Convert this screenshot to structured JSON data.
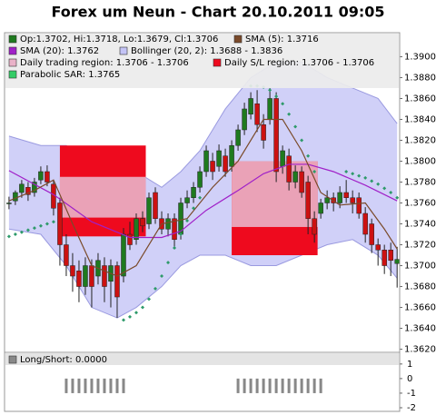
{
  "chart_data": {
    "type": "candlestick",
    "title": "Forex um Neun - Chart 20.10.2011 09:05",
    "xlim": [
      -0.7,
      61.4
    ],
    "ylim": [
      1.3617,
      1.3923
    ],
    "yticks": [
      {
        "value": 1.362,
        "label": "1.3620"
      },
      {
        "value": 1.364,
        "label": "1.3640"
      },
      {
        "value": 1.366,
        "label": "1.3660"
      },
      {
        "value": 1.368,
        "label": "1.3680"
      },
      {
        "value": 1.37,
        "label": "1.3700"
      },
      {
        "value": 1.372,
        "label": "1.3720"
      },
      {
        "value": 1.374,
        "label": "1.3740"
      },
      {
        "value": 1.376,
        "label": "1.3760"
      },
      {
        "value": 1.378,
        "label": "1.3780"
      },
      {
        "value": 1.38,
        "label": "1.3800"
      },
      {
        "value": 1.382,
        "label": "1.3820"
      },
      {
        "value": 1.384,
        "label": "1.3840"
      },
      {
        "value": 1.386,
        "label": "1.3860"
      },
      {
        "value": 1.388,
        "label": "1.3880"
      },
      {
        "value": 1.39,
        "label": "1.3900"
      }
    ],
    "up_color": "#1f7a1f",
    "down_color": "#cc1111",
    "candles": {
      "open": [
        1.376,
        1.3762,
        1.377,
        1.3775,
        1.377,
        1.3782,
        1.379,
        1.3778,
        1.376,
        1.372,
        1.37,
        1.3695,
        1.368,
        1.37,
        1.369,
        1.37,
        1.3685,
        1.37,
        1.369,
        1.373,
        1.3725,
        1.3745,
        1.374,
        1.377,
        1.3745,
        1.3735,
        1.3745,
        1.373,
        1.376,
        1.3765,
        1.3775,
        1.379,
        1.38,
        1.3795,
        1.3805,
        1.3795,
        1.3815,
        1.383,
        1.3845,
        1.3855,
        1.3835,
        1.384,
        1.386,
        1.3795,
        1.3805,
        1.378,
        1.379,
        1.378,
        1.3745,
        1.375,
        1.376,
        1.3765,
        1.376,
        1.377,
        1.3765,
        1.3765,
        1.375,
        1.374,
        1.372,
        1.3715,
        1.3715,
        1.3702
      ],
      "high": [
        1.3766,
        1.3772,
        1.3782,
        1.378,
        1.3784,
        1.3795,
        1.3796,
        1.3782,
        1.3765,
        1.373,
        1.3712,
        1.3705,
        1.3708,
        1.3706,
        1.3712,
        1.3708,
        1.3706,
        1.3704,
        1.3736,
        1.3742,
        1.375,
        1.3752,
        1.377,
        1.3775,
        1.3752,
        1.375,
        1.375,
        1.3765,
        1.3772,
        1.378,
        1.3795,
        1.3815,
        1.3808,
        1.3816,
        1.3812,
        1.382,
        1.3835,
        1.3856,
        1.3866,
        1.3868,
        1.3845,
        1.387,
        1.3866,
        1.3815,
        1.3812,
        1.3796,
        1.3795,
        1.3786,
        1.3752,
        1.3764,
        1.3772,
        1.377,
        1.3776,
        1.3782,
        1.3772,
        1.377,
        1.3756,
        1.3745,
        1.3726,
        1.372,
        1.3722,
        1.3718
      ],
      "low": [
        1.3754,
        1.3758,
        1.3765,
        1.3762,
        1.3766,
        1.3778,
        1.3776,
        1.3748,
        1.37,
        1.369,
        1.3675,
        1.3665,
        1.3672,
        1.366,
        1.3682,
        1.3665,
        1.366,
        1.365,
        1.3684,
        1.3715,
        1.372,
        1.3732,
        1.3735,
        1.374,
        1.373,
        1.3728,
        1.3718,
        1.3725,
        1.3755,
        1.376,
        1.377,
        1.3785,
        1.3782,
        1.379,
        1.3785,
        1.379,
        1.381,
        1.3825,
        1.384,
        1.3828,
        1.3812,
        1.3835,
        1.378,
        1.3788,
        1.3772,
        1.3774,
        1.3765,
        1.373,
        1.3722,
        1.3745,
        1.3754,
        1.3752,
        1.3755,
        1.376,
        1.375,
        1.3745,
        1.3722,
        1.3712,
        1.37,
        1.3692,
        1.369,
        1.3679
      ],
      "close": [
        1.376,
        1.377,
        1.3778,
        1.3768,
        1.378,
        1.379,
        1.378,
        1.3755,
        1.372,
        1.37,
        1.369,
        1.368,
        1.37,
        1.368,
        1.3705,
        1.368,
        1.37,
        1.367,
        1.373,
        1.372,
        1.3745,
        1.3738,
        1.3765,
        1.3745,
        1.3735,
        1.3745,
        1.3725,
        1.376,
        1.3765,
        1.3775,
        1.379,
        1.381,
        1.379,
        1.381,
        1.379,
        1.3815,
        1.383,
        1.385,
        1.386,
        1.3835,
        1.382,
        1.386,
        1.379,
        1.381,
        1.378,
        1.379,
        1.377,
        1.3745,
        1.373,
        1.376,
        1.3765,
        1.376,
        1.377,
        1.3765,
        1.376,
        1.375,
        1.373,
        1.372,
        1.3715,
        1.37,
        1.3705,
        1.3706
      ]
    },
    "bollinger": {
      "color": "#c4c4f6",
      "line_color": "#9a9ae0",
      "x": [
        0,
        5,
        9,
        13,
        17,
        20,
        24,
        27,
        30,
        34,
        38,
        42,
        46,
        50,
        54,
        58,
        61
      ],
      "upper": [
        1.3824,
        1.3815,
        1.3815,
        1.38,
        1.379,
        1.379,
        1.3775,
        1.379,
        1.381,
        1.385,
        1.388,
        1.3895,
        1.3895,
        1.388,
        1.387,
        1.386,
        1.3836
      ],
      "lower": [
        1.3735,
        1.373,
        1.37,
        1.366,
        1.365,
        1.366,
        1.368,
        1.37,
        1.371,
        1.371,
        1.37,
        1.37,
        1.371,
        1.372,
        1.3725,
        1.371,
        1.3688
      ]
    },
    "regions": [
      {
        "x": [
          8,
          21.5
        ],
        "trade": [
          1.3746,
          1.3785
        ],
        "sl": [
          1.3728,
          1.3815
        ]
      },
      {
        "x": [
          35,
          48.5
        ],
        "trade": [
          1.3737,
          1.38
        ],
        "sl": [
          1.371,
          1.38
        ]
      }
    ],
    "trade_color": "#e9b2c8",
    "sl_color": "#ee0a1e",
    "sma5": {
      "color": "#7a4a2a",
      "x": [
        0,
        4,
        7,
        10,
        13,
        17,
        20,
        24,
        28,
        32,
        36,
        40,
        43,
        46,
        49,
        52,
        56,
        59,
        61
      ],
      "values": [
        1.3762,
        1.3772,
        1.3782,
        1.374,
        1.37,
        1.369,
        1.37,
        1.374,
        1.3745,
        1.3775,
        1.38,
        1.384,
        1.384,
        1.381,
        1.377,
        1.3758,
        1.376,
        1.3735,
        1.3716
      ]
    },
    "sma20": {
      "color": "#a020c8",
      "x": [
        0,
        7,
        13,
        19,
        24,
        27,
        31,
        36,
        40,
        44,
        47,
        51,
        56,
        61
      ],
      "values": [
        1.3791,
        1.3768,
        1.3742,
        1.3727,
        1.3727,
        1.3733,
        1.3753,
        1.3772,
        1.3788,
        1.3797,
        1.3797,
        1.379,
        1.3777,
        1.3762
      ]
    },
    "sar": {
      "color": "#2e9a6a",
      "x": [
        0,
        1,
        2,
        3,
        4,
        5,
        6,
        7,
        18,
        19,
        20,
        21,
        22,
        23,
        24,
        25,
        26,
        27,
        28,
        29,
        30,
        38,
        39,
        40,
        41,
        42,
        43,
        44,
        45,
        46,
        47,
        48,
        53,
        54,
        55,
        56,
        57,
        58,
        59,
        60,
        61
      ],
      "values": [
        1.3728,
        1.373,
        1.3732,
        1.3734,
        1.3736,
        1.3738,
        1.374,
        1.3742,
        1.3648,
        1.3651,
        1.3655,
        1.366,
        1.3668,
        1.3678,
        1.369,
        1.3703,
        1.3717,
        1.373,
        1.3743,
        1.3755,
        1.3765,
        1.3872,
        1.3872,
        1.3871,
        1.3868,
        1.3862,
        1.3855,
        1.3845,
        1.3833,
        1.382,
        1.3805,
        1.379,
        1.379,
        1.3788,
        1.3786,
        1.3784,
        1.3781,
        1.3778,
        1.3774,
        1.377,
        1.3765
      ]
    },
    "legend": [
      {
        "label": "Op:1.3702, Hi:1.3718, Lo:1.3679, Cl:1.3706",
        "color": "#1f7a1f"
      },
      {
        "label": "SMA (5): 1.3716",
        "color": "#7a4a2a"
      },
      {
        "label": "SMA (20): 1.3762",
        "color": "#a020c8"
      },
      {
        "label": "Bollinger (20, 2): 1.3688 - 1.3836",
        "color": "#c4c4f6"
      },
      {
        "label": "Daily trading region: 1.3706 - 1.3706",
        "color": "#e9b2c8"
      },
      {
        "label": "Daily S/L region: 1.3706 - 1.3706",
        "color": "#ee0a1e"
      },
      {
        "label": "Parabolic SAR: 1.3765",
        "color": "#33cc66"
      }
    ],
    "lower": {
      "type": "bar",
      "title": "Long/Short: 0.0000",
      "color": "#888888",
      "ylim": [
        -2.25,
        1.8
      ],
      "yticks": [
        1,
        0,
        -1,
        -2
      ],
      "values": [
        0,
        0,
        0,
        0,
        0,
        0,
        0,
        0,
        0,
        -1,
        -1,
        -1,
        -1,
        -1,
        -1,
        -1,
        -1,
        -1,
        -1,
        0,
        0,
        0,
        0,
        0,
        0,
        0,
        0,
        0,
        0,
        0,
        0,
        0,
        0,
        0,
        0,
        0,
        -1,
        -1,
        -1,
        -1,
        -1,
        -1,
        -1,
        -1,
        -1,
        -1,
        -1,
        -1,
        -1,
        -1,
        0,
        0,
        0,
        0,
        0,
        0,
        0,
        0,
        0,
        0,
        0,
        0
      ]
    }
  }
}
